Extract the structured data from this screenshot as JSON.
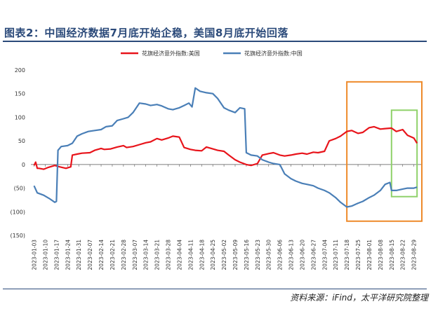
{
  "figure": {
    "title": "图表2：中国经济数据7月底开始企稳，美国8月底开始回落",
    "source": "资料来源：iFind，太平洋研究院整理"
  },
  "chart_data": {
    "type": "line",
    "legend": {
      "position": "top-center"
    },
    "ylim": [
      -150,
      200
    ],
    "ytick_labels": [
      "200",
      "150",
      "100",
      "50",
      "0",
      "(50)",
      "(100)",
      "(150)"
    ],
    "ytick_values": [
      200,
      150,
      100,
      50,
      0,
      -50,
      -100,
      -150
    ],
    "xlim": [
      "2023-01-01",
      "2023-09-03"
    ],
    "x_tick_labels": [
      "2023-01-03",
      "2023-01-10",
      "2023-01-17",
      "2023-01-24",
      "2023-01-31",
      "2023-02-07",
      "2023-02-14",
      "2023-02-21",
      "2023-02-28",
      "2023-03-07",
      "2023-03-14",
      "2023-03-21",
      "2023-03-28",
      "2023-04-04",
      "2023-04-11",
      "2023-04-18",
      "2023-04-25",
      "2023-05-02",
      "2023-05-09",
      "2023-05-16",
      "2023-05-23",
      "2023-05-30",
      "2023-06-06",
      "2023-06-13",
      "2023-06-20",
      "2023-06-27",
      "2023-07-04",
      "2023-07-11",
      "2023-07-18",
      "2023-07-25",
      "2023-08-01",
      "2023-08-08",
      "2023-08-15",
      "2023-08-22",
      "2023-08-29"
    ],
    "grid": false,
    "zero_line": true,
    "series": [
      {
        "name": "花旗经济意外指数:美国",
        "color": "#e8141b",
        "x": [
          "2023-01-03",
          "2023-01-04",
          "2023-01-05",
          "2023-01-06",
          "2023-01-09",
          "2023-01-12",
          "2023-01-16",
          "2023-01-19",
          "2023-01-23",
          "2023-01-26",
          "2023-01-27",
          "2023-01-30",
          "2023-02-02",
          "2023-02-07",
          "2023-02-10",
          "2023-02-14",
          "2023-02-16",
          "2023-02-20",
          "2023-02-24",
          "2023-02-28",
          "2023-03-02",
          "2023-03-06",
          "2023-03-10",
          "2023-03-14",
          "2023-03-17",
          "2023-03-21",
          "2023-03-24",
          "2023-03-28",
          "2023-03-31",
          "2023-04-04",
          "2023-04-07",
          "2023-04-11",
          "2023-04-14",
          "2023-04-18",
          "2023-04-21",
          "2023-04-25",
          "2023-04-28",
          "2023-05-02",
          "2023-05-05",
          "2023-05-09",
          "2023-05-12",
          "2023-05-16",
          "2023-05-19",
          "2023-05-23",
          "2023-05-26",
          "2023-05-30",
          "2023-06-02",
          "2023-06-06",
          "2023-06-09",
          "2023-06-13",
          "2023-06-16",
          "2023-06-20",
          "2023-06-23",
          "2023-06-27",
          "2023-06-30",
          "2023-07-04",
          "2023-07-07",
          "2023-07-11",
          "2023-07-14",
          "2023-07-18",
          "2023-07-21",
          "2023-07-25",
          "2023-07-28",
          "2023-08-01",
          "2023-08-04",
          "2023-08-08",
          "2023-08-11",
          "2023-08-15",
          "2023-08-18",
          "2023-08-22",
          "2023-08-25",
          "2023-08-29",
          "2023-08-31"
        ],
        "y": [
          -2,
          5,
          -8,
          -8,
          -10,
          -6,
          -2,
          -5,
          -8,
          -5,
          20,
          22,
          24,
          25,
          30,
          34,
          32,
          33,
          37,
          40,
          36,
          38,
          42,
          46,
          48,
          55,
          52,
          56,
          60,
          58,
          36,
          32,
          30,
          29,
          37,
          33,
          30,
          28,
          20,
          10,
          5,
          0,
          -2,
          2,
          20,
          23,
          25,
          20,
          18,
          20,
          22,
          24,
          22,
          26,
          25,
          28,
          50,
          55,
          60,
          70,
          72,
          66,
          68,
          78,
          80,
          75,
          76,
          77,
          70,
          74,
          62,
          56,
          45
        ]
      },
      {
        "name": "花旗经济意外指数:中国",
        "color": "#4a7fb7",
        "x": [
          "2023-01-03",
          "2023-01-05",
          "2023-01-09",
          "2023-01-13",
          "2023-01-16",
          "2023-01-17",
          "2023-01-18",
          "2023-01-20",
          "2023-01-24",
          "2023-01-27",
          "2023-01-30",
          "2023-02-02",
          "2023-02-06",
          "2023-02-10",
          "2023-02-14",
          "2023-02-17",
          "2023-02-21",
          "2023-02-24",
          "2023-02-28",
          "2023-03-03",
          "2023-03-06",
          "2023-03-10",
          "2023-03-14",
          "2023-03-17",
          "2023-03-21",
          "2023-03-24",
          "2023-03-28",
          "2023-03-31",
          "2023-04-04",
          "2023-04-07",
          "2023-04-10",
          "2023-04-12",
          "2023-04-14",
          "2023-04-17",
          "2023-04-21",
          "2023-04-25",
          "2023-04-28",
          "2023-05-02",
          "2023-05-05",
          "2023-05-09",
          "2023-05-12",
          "2023-05-15",
          "2023-05-16",
          "2023-05-19",
          "2023-05-23",
          "2023-05-26",
          "2023-05-30",
          "2023-06-02",
          "2023-06-06",
          "2023-06-09",
          "2023-06-13",
          "2023-06-16",
          "2023-06-20",
          "2023-06-23",
          "2023-06-27",
          "2023-06-30",
          "2023-07-04",
          "2023-07-07",
          "2023-07-11",
          "2023-07-14",
          "2023-07-18",
          "2023-07-21",
          "2023-07-25",
          "2023-07-28",
          "2023-08-01",
          "2023-08-04",
          "2023-08-08",
          "2023-08-11",
          "2023-08-14",
          "2023-08-15",
          "2023-08-18",
          "2023-08-22",
          "2023-08-25",
          "2023-08-29",
          "2023-08-31"
        ],
        "y": [
          -45,
          -60,
          -65,
          -73,
          -80,
          -78,
          30,
          38,
          40,
          45,
          60,
          65,
          70,
          72,
          74,
          80,
          82,
          93,
          97,
          100,
          110,
          130,
          128,
          125,
          127,
          124,
          118,
          116,
          120,
          125,
          130,
          122,
          162,
          155,
          152,
          150,
          140,
          120,
          115,
          110,
          120,
          118,
          25,
          20,
          18,
          10,
          5,
          2,
          0,
          -20,
          -30,
          -35,
          -40,
          -42,
          -45,
          -50,
          -55,
          -60,
          -70,
          -80,
          -90,
          -88,
          -82,
          -78,
          -70,
          -65,
          -55,
          -42,
          -38,
          -55,
          -55,
          -52,
          -50,
          -50,
          -48
        ]
      }
    ],
    "annotations": [
      {
        "type": "rect",
        "color": "#ee8a2a",
        "x0": "2023-07-18",
        "x1": "2023-09-03",
        "y0": -120,
        "y1": 175
      },
      {
        "type": "rect",
        "color": "#8fd16a",
        "x0": "2023-08-15",
        "x1": "2023-08-31",
        "y0": -68,
        "y1": 115
      }
    ]
  }
}
